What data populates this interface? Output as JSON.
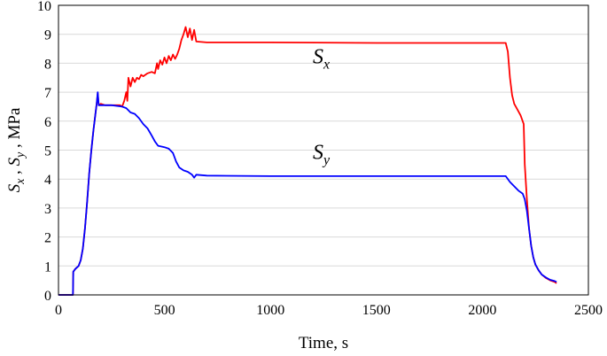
{
  "chart_data": {
    "type": "line",
    "xlabel": "Time, s",
    "ylabel_parts": [
      {
        "text": "S",
        "italic": true
      },
      {
        "text": "x",
        "italic": true,
        "sub": true
      },
      {
        "text": " , ",
        "italic": false
      },
      {
        "text": "S",
        "italic": true
      },
      {
        "text": "y",
        "italic": true,
        "sub": true
      },
      {
        "text": " , MPa",
        "italic": false
      }
    ],
    "xlim": [
      0,
      2500
    ],
    "ylim": [
      0,
      10
    ],
    "xticks": [
      0,
      500,
      1000,
      1500,
      2000,
      2500
    ],
    "yticks": [
      0,
      1,
      2,
      3,
      4,
      5,
      6,
      7,
      8,
      9,
      10
    ],
    "grid": {
      "y": true,
      "x": false
    },
    "series": [
      {
        "label_main": "S",
        "label_sub": "x",
        "color": "#ff0000",
        "label_pos": [
          1200,
          8.0
        ],
        "points": [
          [
            0,
            0.0
          ],
          [
            60,
            0.0
          ],
          [
            68,
            0.0
          ],
          [
            70,
            0.8
          ],
          [
            80,
            0.9
          ],
          [
            95,
            1.0
          ],
          [
            105,
            1.2
          ],
          [
            115,
            1.6
          ],
          [
            125,
            2.3
          ],
          [
            135,
            3.2
          ],
          [
            145,
            4.2
          ],
          [
            155,
            5.0
          ],
          [
            165,
            5.7
          ],
          [
            175,
            6.3
          ],
          [
            180,
            6.6
          ],
          [
            185,
            6.95
          ],
          [
            190,
            6.55
          ],
          [
            200,
            6.6
          ],
          [
            220,
            6.55
          ],
          [
            250,
            6.55
          ],
          [
            290,
            6.55
          ],
          [
            300,
            6.5
          ],
          [
            310,
            6.7
          ],
          [
            320,
            7.0
          ],
          [
            325,
            6.7
          ],
          [
            330,
            7.5
          ],
          [
            340,
            7.2
          ],
          [
            350,
            7.5
          ],
          [
            360,
            7.35
          ],
          [
            370,
            7.5
          ],
          [
            380,
            7.45
          ],
          [
            390,
            7.6
          ],
          [
            400,
            7.55
          ],
          [
            420,
            7.65
          ],
          [
            440,
            7.7
          ],
          [
            455,
            7.65
          ],
          [
            465,
            8.0
          ],
          [
            470,
            7.8
          ],
          [
            480,
            8.1
          ],
          [
            490,
            7.95
          ],
          [
            500,
            8.2
          ],
          [
            510,
            8.0
          ],
          [
            520,
            8.25
          ],
          [
            530,
            8.1
          ],
          [
            540,
            8.3
          ],
          [
            550,
            8.15
          ],
          [
            560,
            8.3
          ],
          [
            570,
            8.5
          ],
          [
            580,
            8.8
          ],
          [
            590,
            9.0
          ],
          [
            600,
            9.25
          ],
          [
            610,
            8.9
          ],
          [
            620,
            9.2
          ],
          [
            630,
            8.8
          ],
          [
            640,
            9.15
          ],
          [
            650,
            8.75
          ],
          [
            700,
            8.72
          ],
          [
            1000,
            8.72
          ],
          [
            1500,
            8.7
          ],
          [
            2000,
            8.7
          ],
          [
            2110,
            8.7
          ],
          [
            2120,
            8.4
          ],
          [
            2130,
            7.5
          ],
          [
            2140,
            6.9
          ],
          [
            2150,
            6.6
          ],
          [
            2165,
            6.4
          ],
          [
            2180,
            6.2
          ],
          [
            2195,
            5.9
          ],
          [
            2200,
            4.5
          ],
          [
            2210,
            3.3
          ],
          [
            2220,
            2.3
          ],
          [
            2230,
            1.7
          ],
          [
            2240,
            1.3
          ],
          [
            2250,
            1.05
          ],
          [
            2265,
            0.85
          ],
          [
            2280,
            0.7
          ],
          [
            2300,
            0.58
          ],
          [
            2320,
            0.5
          ],
          [
            2340,
            0.45
          ],
          [
            2350,
            0.4
          ]
        ]
      },
      {
        "label_main": "S",
        "label_sub": "y",
        "color": "#0000ff",
        "label_pos": [
          1200,
          4.7
        ],
        "points": [
          [
            0,
            0.0
          ],
          [
            60,
            0.0
          ],
          [
            68,
            0.0
          ],
          [
            70,
            0.8
          ],
          [
            80,
            0.9
          ],
          [
            95,
            1.0
          ],
          [
            105,
            1.2
          ],
          [
            115,
            1.6
          ],
          [
            125,
            2.3
          ],
          [
            135,
            3.2
          ],
          [
            145,
            4.2
          ],
          [
            155,
            5.0
          ],
          [
            165,
            5.7
          ],
          [
            175,
            6.3
          ],
          [
            180,
            6.6
          ],
          [
            185,
            7.0
          ],
          [
            190,
            6.55
          ],
          [
            200,
            6.55
          ],
          [
            250,
            6.55
          ],
          [
            300,
            6.5
          ],
          [
            320,
            6.45
          ],
          [
            340,
            6.3
          ],
          [
            360,
            6.25
          ],
          [
            380,
            6.1
          ],
          [
            400,
            5.9
          ],
          [
            420,
            5.75
          ],
          [
            440,
            5.5
          ],
          [
            455,
            5.3
          ],
          [
            470,
            5.15
          ],
          [
            500,
            5.1
          ],
          [
            520,
            5.05
          ],
          [
            540,
            4.9
          ],
          [
            555,
            4.6
          ],
          [
            570,
            4.4
          ],
          [
            590,
            4.3
          ],
          [
            610,
            4.25
          ],
          [
            630,
            4.15
          ],
          [
            640,
            4.05
          ],
          [
            650,
            4.15
          ],
          [
            700,
            4.12
          ],
          [
            1000,
            4.1
          ],
          [
            1500,
            4.1
          ],
          [
            2000,
            4.1
          ],
          [
            2110,
            4.1
          ],
          [
            2130,
            3.9
          ],
          [
            2150,
            3.75
          ],
          [
            2170,
            3.6
          ],
          [
            2190,
            3.5
          ],
          [
            2200,
            3.3
          ],
          [
            2210,
            2.9
          ],
          [
            2220,
            2.3
          ],
          [
            2230,
            1.7
          ],
          [
            2240,
            1.3
          ],
          [
            2250,
            1.05
          ],
          [
            2265,
            0.85
          ],
          [
            2280,
            0.7
          ],
          [
            2300,
            0.6
          ],
          [
            2320,
            0.52
          ],
          [
            2340,
            0.48
          ],
          [
            2350,
            0.45
          ]
        ]
      }
    ]
  }
}
